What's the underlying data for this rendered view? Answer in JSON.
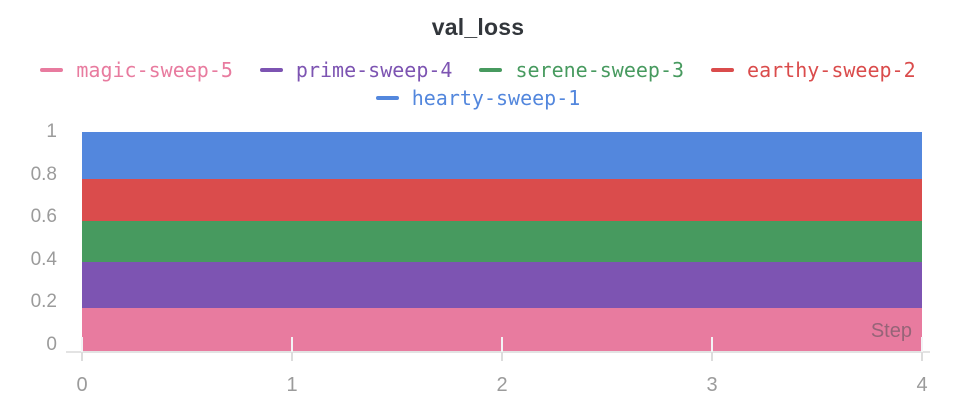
{
  "title": "val_loss",
  "legend": {
    "items": [
      {
        "label": "magic-sweep-5",
        "color": "#E87B9F"
      },
      {
        "label": "prime-sweep-4",
        "color": "#7D54B2"
      },
      {
        "label": "serene-sweep-3",
        "color": "#479A5F"
      },
      {
        "label": "earthy-sweep-2",
        "color": "#DA4C4C"
      },
      {
        "label": "hearty-sweep-1",
        "color": "#5387DD"
      }
    ]
  },
  "axes": {
    "x_label": "Step",
    "x_tick_labels": [
      "0",
      "1",
      "2",
      "3",
      "4"
    ],
    "y_tick_labels": [
      "0",
      "0.2",
      "0.4",
      "0.6",
      "0.8",
      "1"
    ]
  },
  "chart_data": {
    "type": "area",
    "title": "val_loss",
    "xlabel": "Step",
    "ylabel": "",
    "x": [
      0,
      1,
      2,
      3,
      4
    ],
    "xlim": [
      0,
      4
    ],
    "ylim": [
      0,
      1
    ],
    "x_ticks": [
      0,
      1,
      2,
      3,
      4
    ],
    "y_ticks": [
      0,
      0.2,
      0.4,
      0.6,
      0.8,
      1
    ],
    "grid": false,
    "legend_position": "top",
    "series": [
      {
        "name": "hearty-sweep-1",
        "color": "#5387DD",
        "values": [
          1.0,
          1.0,
          1.0,
          1.0,
          1.0
        ]
      },
      {
        "name": "earthy-sweep-2",
        "color": "#DA4C4C",
        "values": [
          0.78,
          0.78,
          0.78,
          0.78,
          0.78
        ]
      },
      {
        "name": "serene-sweep-3",
        "color": "#479A5F",
        "values": [
          0.58,
          0.58,
          0.58,
          0.58,
          0.58
        ]
      },
      {
        "name": "prime-sweep-4",
        "color": "#7D54B2",
        "values": [
          0.39,
          0.39,
          0.39,
          0.39,
          0.39
        ]
      },
      {
        "name": "magic-sweep-5",
        "color": "#E87B9F",
        "values": [
          0.175,
          0.175,
          0.175,
          0.175,
          0.175
        ]
      }
    ]
  },
  "colors": {
    "background": "#FFFFFF",
    "title_text": "#32363B",
    "tick_text": "#9B9B9B",
    "axis_line": "#E3E3E3",
    "tick_mark_above_axis": "#F3F3F5",
    "tick_mark_below_axis": "#DCDCDC"
  }
}
